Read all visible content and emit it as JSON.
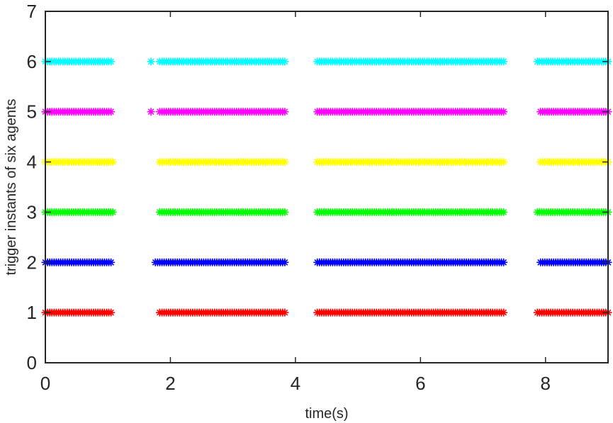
{
  "chart_data": {
    "type": "scatter",
    "title": "",
    "xlabel": "time(s)",
    "ylabel": "trigger instants of six agents",
    "xlim": [
      0,
      9
    ],
    "ylim": [
      0,
      7
    ],
    "xticks": [
      0,
      2,
      4,
      6,
      8
    ],
    "yticks": [
      0,
      1,
      2,
      3,
      4,
      5,
      6,
      7
    ],
    "grid": false,
    "legend": "none",
    "marker": "asterisk",
    "series": [
      {
        "y": 1,
        "color": "#ff0000",
        "intervals": [
          [
            0.0,
            1.05
          ],
          [
            1.83,
            3.83
          ],
          [
            4.35,
            7.33
          ],
          [
            7.87,
            9.0
          ]
        ],
        "isolated": []
      },
      {
        "y": 2,
        "color": "#0000ff",
        "intervals": [
          [
            0.0,
            1.05
          ],
          [
            1.76,
            3.83
          ],
          [
            4.35,
            7.33
          ],
          [
            7.92,
            9.0
          ]
        ],
        "isolated": []
      },
      {
        "y": 3,
        "color": "#00ff00",
        "intervals": [
          [
            0.0,
            1.08
          ],
          [
            1.83,
            3.83
          ],
          [
            4.35,
            7.33
          ],
          [
            7.87,
            9.0
          ]
        ],
        "isolated": []
      },
      {
        "y": 4,
        "color": "#ffff00",
        "intervals": [
          [
            0.0,
            1.08
          ],
          [
            1.83,
            3.83
          ],
          [
            4.35,
            7.33
          ],
          [
            7.92,
            9.0
          ]
        ],
        "isolated": []
      },
      {
        "y": 5,
        "color": "#ff00ff",
        "intervals": [
          [
            0.0,
            1.05
          ],
          [
            1.83,
            3.83
          ],
          [
            4.35,
            7.33
          ],
          [
            7.92,
            9.0
          ]
        ],
        "isolated": [
          1.69
        ]
      },
      {
        "y": 6,
        "color": "#00ffff",
        "intervals": [
          [
            0.0,
            1.05
          ],
          [
            1.83,
            3.83
          ],
          [
            4.35,
            7.33
          ],
          [
            7.87,
            9.0
          ]
        ],
        "isolated": [
          1.69
        ]
      }
    ]
  }
}
